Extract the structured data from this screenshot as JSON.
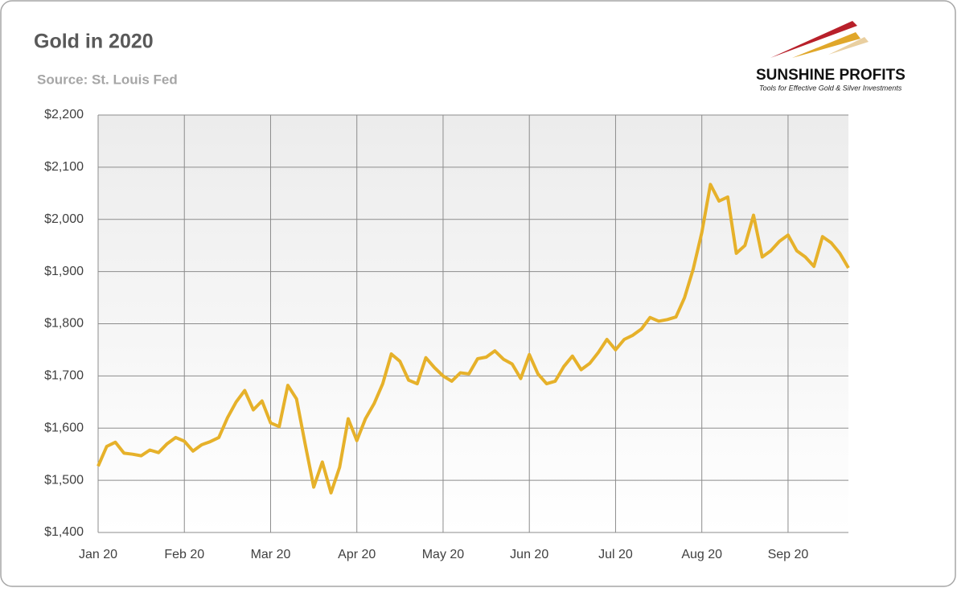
{
  "chart_data": {
    "type": "line",
    "title": "Gold in 2020",
    "subtitle": "Source: St. Louis Fed",
    "logo": {
      "name": "SUNSHINE PROFITS",
      "tagline": "Tools for Effective Gold & Silver Investments"
    },
    "categories": [
      "Jan 20",
      null,
      null,
      null,
      null,
      null,
      null,
      null,
      null,
      null,
      "Feb 20",
      null,
      null,
      null,
      null,
      null,
      null,
      null,
      null,
      null,
      "Mar 20",
      null,
      null,
      null,
      null,
      null,
      null,
      null,
      null,
      null,
      "Apr 20",
      null,
      null,
      null,
      null,
      null,
      null,
      null,
      null,
      null,
      "May 20",
      null,
      null,
      null,
      null,
      null,
      null,
      null,
      null,
      null,
      "Jun 20",
      null,
      null,
      null,
      null,
      null,
      null,
      null,
      null,
      null,
      "Jul 20",
      null,
      null,
      null,
      null,
      null,
      null,
      null,
      null,
      null,
      "Aug 20",
      null,
      null,
      null,
      null,
      null,
      null,
      null,
      null,
      null,
      "Sep 20",
      null,
      null,
      null,
      null,
      null,
      null,
      null
    ],
    "series": [
      {
        "color": "#e6b12a",
        "values": [
          1527,
          1565,
          1573,
          1552,
          1550,
          1547,
          1558,
          1553,
          1570,
          1582,
          1575,
          1556,
          1568,
          1574,
          1582,
          1620,
          1650,
          1672,
          1635,
          1652,
          1610,
          1603,
          1682,
          1656,
          1570,
          1487,
          1535,
          1476,
          1525,
          1618,
          1576,
          1618,
          1647,
          1685,
          1742,
          1728,
          1692,
          1685,
          1735,
          1716,
          1700,
          1690,
          1706,
          1704,
          1733,
          1736,
          1748,
          1732,
          1723,
          1695,
          1741,
          1704,
          1685,
          1690,
          1718,
          1738,
          1712,
          1724,
          1745,
          1770,
          1750,
          1770,
          1778,
          1790,
          1812,
          1805,
          1808,
          1813,
          1850,
          1905,
          1975,
          2067,
          2035,
          2043,
          1935,
          1950,
          2008,
          1928,
          1940,
          1958,
          1970,
          1940,
          1928,
          1910,
          1967,
          1955,
          1935,
          1907
        ]
      }
    ],
    "ylim": [
      1400,
      2200
    ],
    "yticks": [
      {
        "value": 1400,
        "label": "$1,400"
      },
      {
        "value": 1500,
        "label": "$1,500"
      },
      {
        "value": 1600,
        "label": "$1,600"
      },
      {
        "value": 1700,
        "label": "$1,700"
      },
      {
        "value": 1800,
        "label": "$1,800"
      },
      {
        "value": 1900,
        "label": "$1,900"
      },
      {
        "value": 2000,
        "label": "$2,000"
      },
      {
        "value": 2100,
        "label": "$2,100"
      },
      {
        "value": 2200,
        "label": "$2,200"
      }
    ],
    "grid": true
  }
}
